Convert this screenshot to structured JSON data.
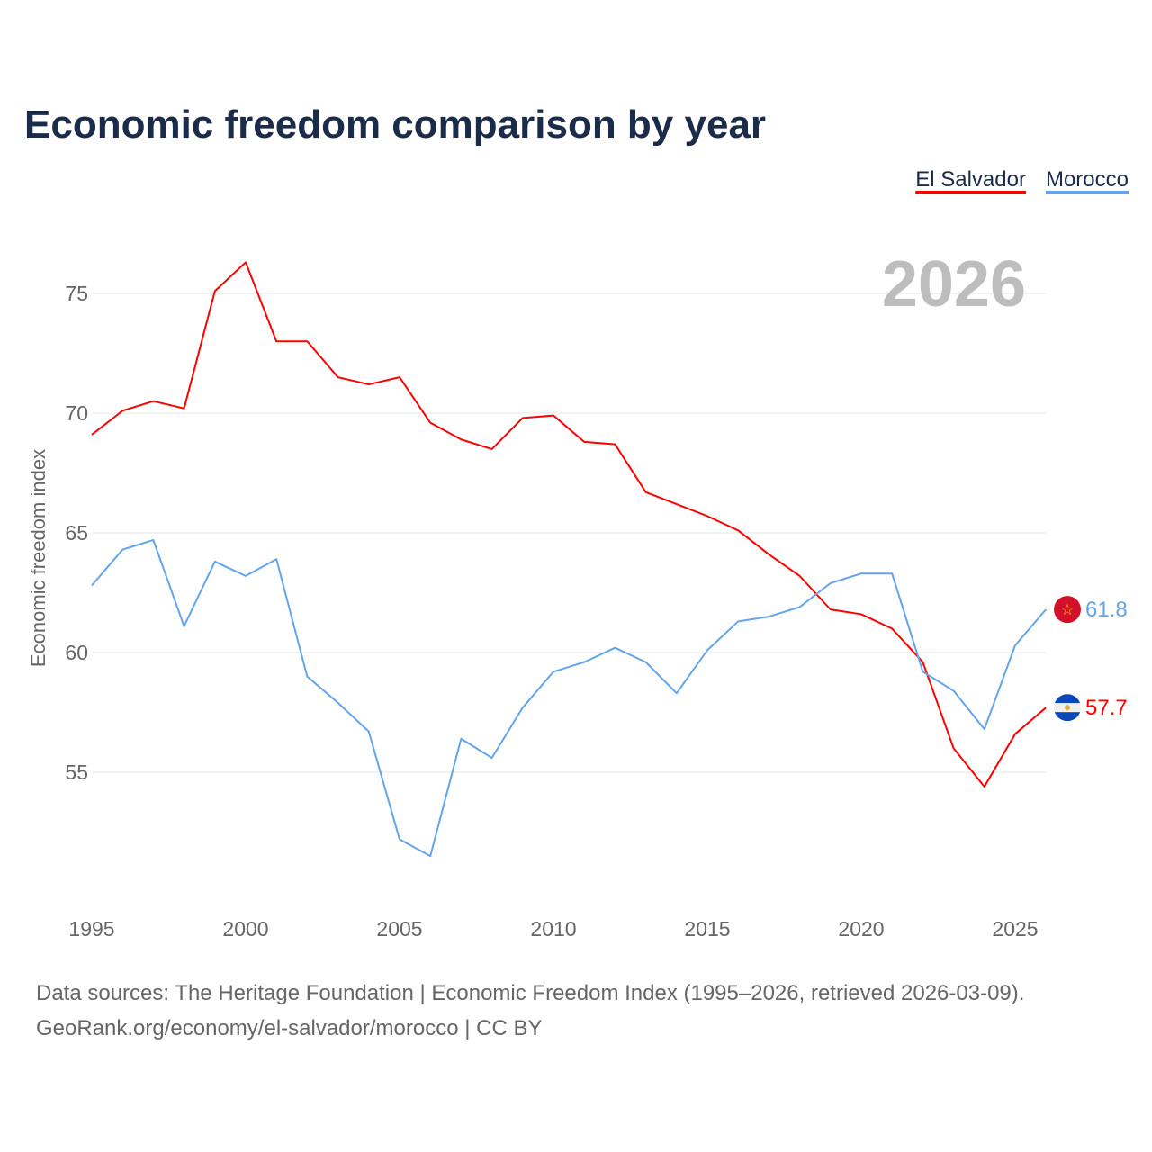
{
  "chart_data": {
    "type": "line",
    "title": "Economic freedom comparison by year",
    "ylabel": "Economic freedom index",
    "xlabel": "",
    "current_year_label": "2026",
    "ylim": [
      49.5,
      77
    ],
    "xlim": [
      1995,
      2026
    ],
    "yticks": [
      55,
      60,
      65,
      70,
      75
    ],
    "xticks": [
      1995,
      2000,
      2005,
      2010,
      2015,
      2020,
      2025
    ],
    "grid": true,
    "legend_position": "top-right",
    "x": [
      1995,
      1996,
      1997,
      1998,
      1999,
      2000,
      2001,
      2002,
      2003,
      2004,
      2005,
      2006,
      2007,
      2008,
      2009,
      2010,
      2011,
      2012,
      2013,
      2014,
      2015,
      2016,
      2017,
      2018,
      2019,
      2020,
      2021,
      2022,
      2023,
      2024,
      2025,
      2026
    ],
    "series": [
      {
        "name": "El Salvador",
        "color": "#ff0000",
        "end_label": "57.7",
        "flag": "el-salvador",
        "values": [
          69.1,
          70.1,
          70.5,
          70.2,
          75.1,
          76.3,
          73.0,
          73.0,
          71.5,
          71.2,
          71.5,
          69.6,
          68.9,
          68.5,
          69.8,
          69.9,
          68.8,
          68.7,
          66.7,
          66.2,
          65.7,
          65.1,
          64.1,
          63.2,
          61.8,
          61.6,
          61.0,
          59.6,
          56.0,
          54.4,
          56.6,
          57.7
        ]
      },
      {
        "name": "Morocco",
        "color": "#63a5ea",
        "end_label": "61.8",
        "flag": "morocco",
        "values": [
          62.8,
          64.3,
          64.7,
          61.1,
          63.8,
          63.2,
          63.9,
          59.0,
          57.9,
          56.7,
          52.2,
          51.5,
          56.4,
          55.6,
          57.7,
          59.2,
          59.6,
          60.2,
          59.6,
          58.3,
          60.1,
          61.3,
          61.5,
          61.9,
          62.9,
          63.3,
          63.3,
          59.2,
          58.4,
          56.8,
          60.3,
          61.8
        ]
      }
    ]
  },
  "footer": {
    "line1": "Data sources: The Heritage Foundation | Economic Freedom Index (1995–2026, retrieved 2026-03-09).",
    "line2": "GeoRank.org/economy/el-salvador/morocco | CC BY"
  }
}
